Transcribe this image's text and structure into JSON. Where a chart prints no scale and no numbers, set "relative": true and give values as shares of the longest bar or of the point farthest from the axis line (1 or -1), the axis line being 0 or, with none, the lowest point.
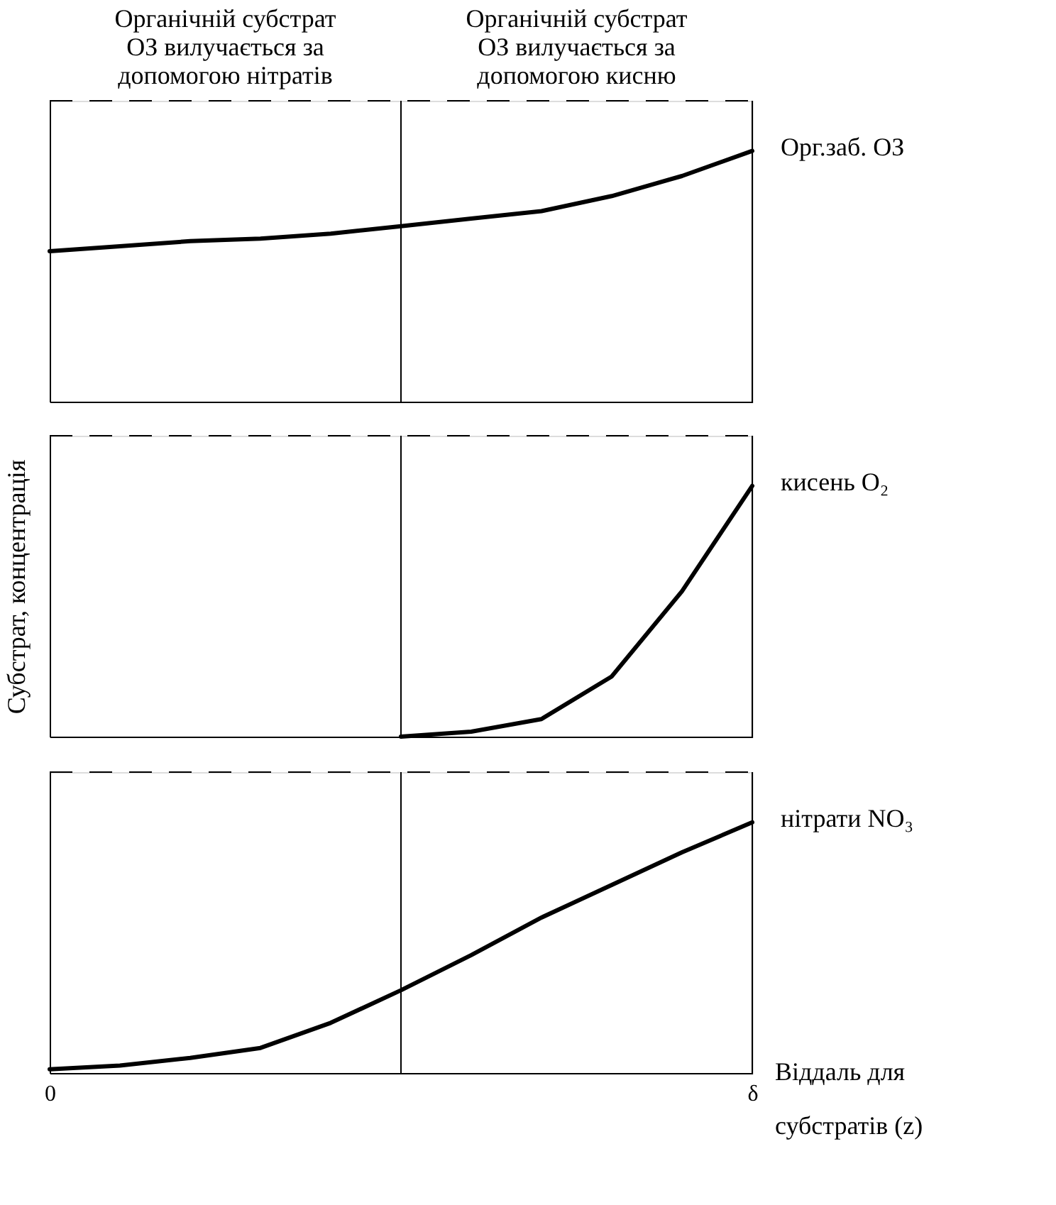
{
  "chart_data": [
    {
      "type": "line",
      "relative": true,
      "annotations": [
        "Органічній субстрат\nОЗ вилучається за\nдопомогою нітратів",
        "Органічній субстрат\nОЗ вилучається за\nдопомогою кисню"
      ],
      "categories": [
        null,
        null,
        null,
        null,
        null,
        null,
        null,
        null,
        null,
        null,
        null
      ],
      "series": [
        {
          "name": "Орг.заб. ОЗ",
          "color": "#000000",
          "values": [
            0.6,
            0.62,
            0.64,
            0.65,
            0.67,
            0.7,
            0.73,
            0.76,
            0.82,
            0.9,
            1
          ]
        }
      ]
    },
    {
      "type": "line",
      "relative": true,
      "ylabel": "Субстрат, концентрація",
      "categories": [
        null,
        null,
        null,
        null,
        null,
        null,
        null,
        null,
        null,
        null,
        null
      ],
      "series": [
        {
          "name": "кисень O₂",
          "color": "#000000",
          "values": [
            null,
            null,
            null,
            null,
            null,
            0,
            0.02,
            0.07,
            0.24,
            0.58,
            1
          ]
        }
      ]
    },
    {
      "type": "line",
      "relative": true,
      "xlabel": "Віддаль для\nсубстратів (z)",
      "categories": [
        "0",
        null,
        null,
        null,
        null,
        null,
        null,
        null,
        null,
        null,
        "δ"
      ],
      "tick_labels": "x",
      "series": [
        {
          "name": "нітрати NO₃",
          "color": "#000000",
          "values": [
            0.015,
            0.03,
            0.06,
            0.1,
            0.2,
            0.33,
            0.47,
            0.62,
            0.75,
            0.88,
            1
          ]
        }
      ]
    }
  ]
}
